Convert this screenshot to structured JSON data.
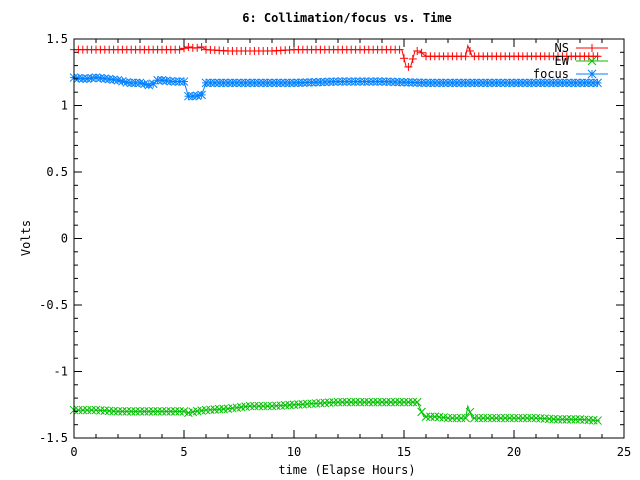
{
  "chart_data": {
    "type": "line",
    "title": "6: Collimation/focus vs. Time",
    "xlabel": "time (Elapse Hours)",
    "ylabel": "Volts",
    "xlim": [
      0,
      25
    ],
    "ylim": [
      -1.5,
      1.5
    ],
    "xticks": [
      0,
      5,
      10,
      15,
      20,
      25
    ],
    "xtick_labels": [
      "0",
      "5",
      "10",
      "15",
      "20",
      "25"
    ],
    "yticks": [
      -1.5,
      -1,
      -0.5,
      0,
      0.5,
      1,
      1.5
    ],
    "ytick_labels": [
      "-1.5",
      "-1",
      "-0.5",
      "0",
      "0.5",
      "1",
      "1.5"
    ],
    "grid": false,
    "legend_position": "top-right",
    "series": [
      {
        "name": "NS",
        "color": "#ff0000",
        "marker": "plus",
        "x": [
          0,
          1,
          2,
          3,
          4,
          4.8,
          5,
          5.2,
          5.5,
          5.8,
          6,
          7,
          8,
          9,
          10,
          11,
          12,
          13,
          14,
          14.9,
          15.1,
          15.3,
          15.5,
          15.7,
          16,
          17,
          17.8,
          17.9,
          18.1,
          19,
          20,
          21,
          22,
          23,
          23.9
        ],
        "y": [
          1.42,
          1.42,
          1.42,
          1.42,
          1.42,
          1.42,
          1.43,
          1.44,
          1.43,
          1.44,
          1.42,
          1.41,
          1.41,
          1.41,
          1.42,
          1.42,
          1.42,
          1.42,
          1.42,
          1.42,
          1.29,
          1.29,
          1.41,
          1.41,
          1.37,
          1.37,
          1.37,
          1.45,
          1.37,
          1.37,
          1.37,
          1.37,
          1.37,
          1.37,
          1.37
        ]
      },
      {
        "name": "EW",
        "color": "#00c000",
        "marker": "cross",
        "x": [
          0,
          1,
          2,
          3,
          4,
          5,
          5.2,
          5.5,
          6,
          7,
          8,
          9,
          10,
          11,
          12,
          13,
          14,
          15,
          15.6,
          15.9,
          16.5,
          17,
          17.8,
          17.9,
          18.1,
          19,
          20,
          21,
          22,
          23,
          23.9
        ],
        "y": [
          -1.29,
          -1.29,
          -1.3,
          -1.3,
          -1.3,
          -1.3,
          -1.31,
          -1.3,
          -1.29,
          -1.28,
          -1.26,
          -1.26,
          -1.25,
          -1.24,
          -1.23,
          -1.23,
          -1.23,
          -1.23,
          -1.23,
          -1.34,
          -1.34,
          -1.35,
          -1.35,
          -1.26,
          -1.35,
          -1.35,
          -1.35,
          -1.35,
          -1.36,
          -1.36,
          -1.37
        ]
      },
      {
        "name": "focus",
        "color": "#0080ff",
        "marker": "star",
        "x": [
          0,
          0.5,
          1,
          1.5,
          2,
          2.5,
          3,
          3.5,
          3.8,
          4,
          4.5,
          5,
          5.2,
          5.5,
          5.8,
          6,
          7,
          8,
          10,
          12,
          14,
          16,
          18,
          20,
          22,
          23.9
        ],
        "y": [
          1.21,
          1.2,
          1.21,
          1.2,
          1.19,
          1.17,
          1.17,
          1.15,
          1.19,
          1.19,
          1.18,
          1.18,
          1.07,
          1.07,
          1.08,
          1.17,
          1.17,
          1.17,
          1.17,
          1.18,
          1.18,
          1.17,
          1.17,
          1.17,
          1.17,
          1.17
        ]
      }
    ]
  }
}
